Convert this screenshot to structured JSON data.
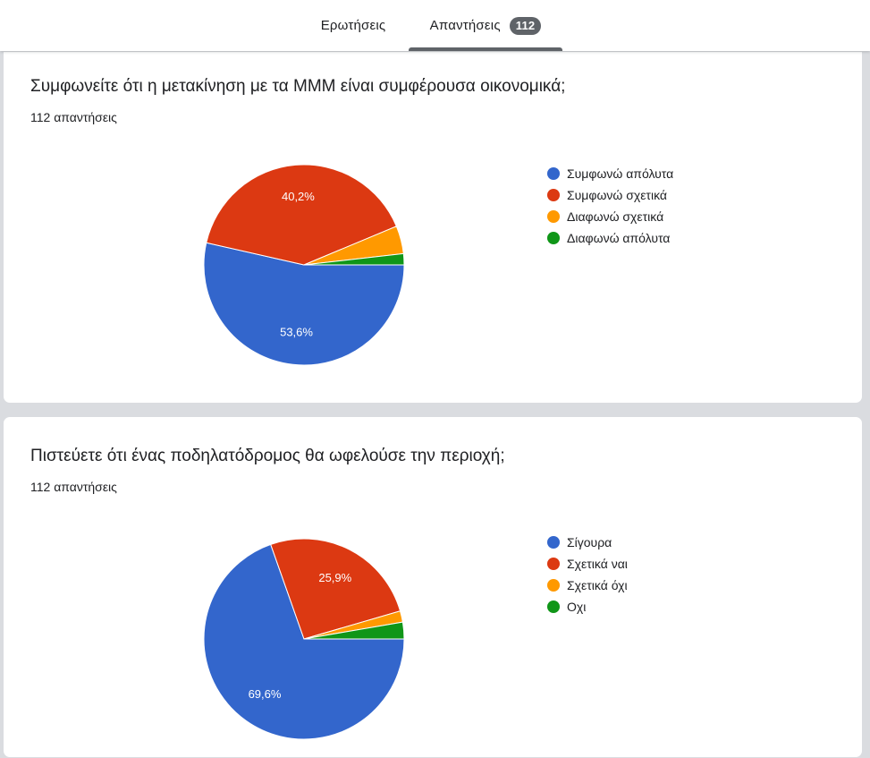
{
  "tabs": {
    "questions_label": "Ερωτήσεις",
    "responses_label": "Απαντήσεις",
    "responses_count": "112"
  },
  "questions": [
    {
      "title": "Συμφωνείτε ότι η μετακίνηση με τα ΜΜΜ είναι συμφέρουσα οικονομικά;",
      "count_text": "112 απαντήσεις"
    },
    {
      "title": "Πιστεύετε ότι ένας ποδηλατόδρομος θα ωφελούσε την περιοχή;",
      "count_text": "112 απαντήσεις"
    }
  ],
  "chart_data": [
    {
      "type": "pie",
      "title": "Συμφωνείτε ότι η μετακίνηση με τα ΜΜΜ είναι συμφέρουσα οικονομικά;",
      "categories": [
        "Συμφωνώ απόλυτα",
        "Συμφωνώ σχετικά",
        "Διαφωνώ σχετικά",
        "Διαφωνώ απόλυτα"
      ],
      "values": [
        53.6,
        40.2,
        4.5,
        1.8
      ],
      "data_labels": [
        "53,6%",
        "40,2%",
        "",
        ""
      ],
      "colors": [
        "#3366cc",
        "#dc3912",
        "#ff9900",
        "#109618"
      ],
      "legend": "right"
    },
    {
      "type": "pie",
      "title": "Πιστεύετε ότι ένας ποδηλατόδρομος θα ωφελούσε την περιοχή;",
      "categories": [
        "Σίγουρα",
        "Σχετικά ναι",
        "Σχετικά όχι",
        "Οχι"
      ],
      "values": [
        69.6,
        25.9,
        1.8,
        2.7
      ],
      "data_labels": [
        "69,6%",
        "25,9%",
        "",
        ""
      ],
      "colors": [
        "#3366cc",
        "#dc3912",
        "#ff9900",
        "#109618"
      ],
      "legend": "right"
    }
  ]
}
